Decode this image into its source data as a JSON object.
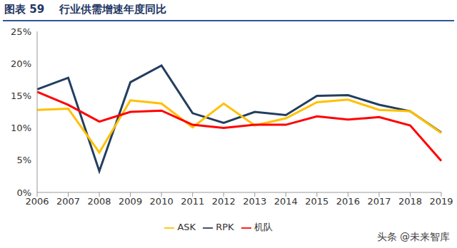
{
  "chart_data": {
    "type": "line",
    "title": "图表 59    行业供需增速年度同比",
    "annotations": [
      "头条 @未来智库"
    ],
    "categories": [
      "2006",
      "2007",
      "2008",
      "2009",
      "2010",
      "2011",
      "2012",
      "2013",
      "2014",
      "2015",
      "2016",
      "2017",
      "2018",
      "2019"
    ],
    "series": [
      {
        "name": "RPK",
        "color": "#233E5E",
        "values": [
          16.0,
          17.8,
          3.3,
          17.1,
          19.7,
          12.3,
          10.8,
          12.5,
          12.0,
          15.0,
          15.1,
          13.6,
          12.6,
          9.3
        ]
      },
      {
        "name": "ASK",
        "color": "#FFC000",
        "values": [
          12.8,
          13.0,
          6.2,
          14.3,
          13.8,
          10.1,
          13.8,
          10.4,
          11.5,
          14.0,
          14.4,
          12.8,
          12.6,
          9.2
        ]
      },
      {
        "name": "机队",
        "color": "#FF0000",
        "values": [
          15.6,
          13.6,
          11.0,
          12.5,
          12.7,
          10.5,
          10.0,
          10.5,
          10.5,
          11.8,
          11.3,
          11.7,
          10.4,
          4.9
        ]
      }
    ],
    "ylim": [
      0,
      25
    ],
    "yticks": [
      {
        "value": 0,
        "label": "0%"
      },
      {
        "value": 5,
        "label": "5%"
      },
      {
        "value": 10,
        "label": "10%"
      },
      {
        "value": 15,
        "label": "15%"
      },
      {
        "value": 20,
        "label": "20%"
      },
      {
        "value": 25,
        "label": "25%"
      }
    ],
    "grid": false,
    "legend": "bottom"
  }
}
